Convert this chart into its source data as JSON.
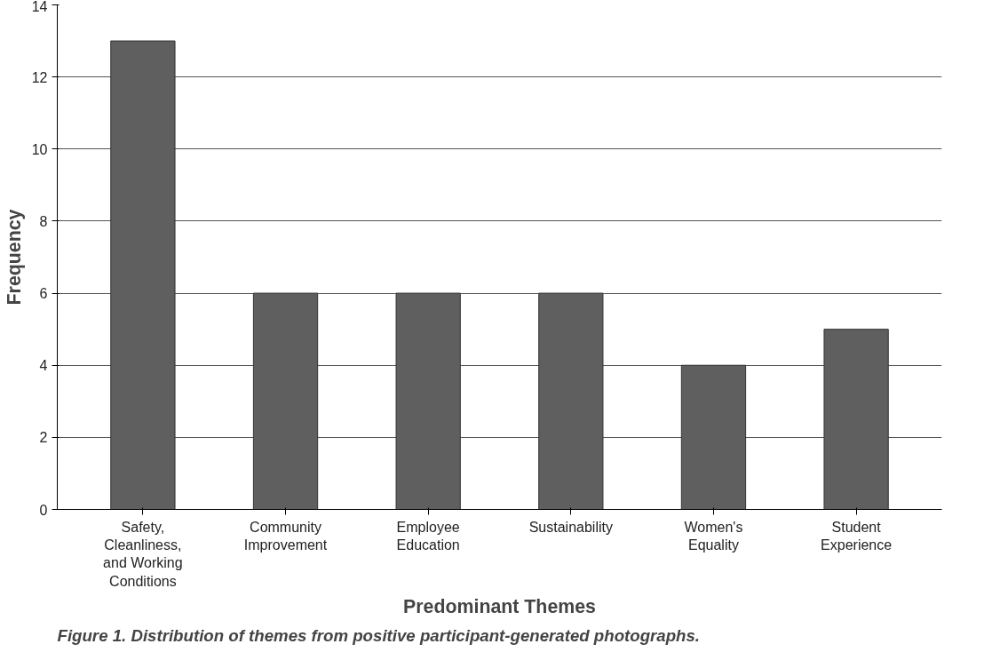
{
  "chart_data": {
    "type": "bar",
    "xlabel": "Predominant Themes",
    "ylabel": "Frequency",
    "categories": [
      "Safety, Cleanliness, and Working Conditions",
      "Community Improvement",
      "Employee Education",
      "Sustainability",
      "Women's Equality",
      "Student Experience"
    ],
    "values": [
      13,
      6,
      6,
      6,
      4,
      5
    ],
    "color": "#5f5f5f",
    "ylim": [
      0,
      14
    ],
    "yticks": [
      0,
      2,
      4,
      6,
      8,
      10,
      12,
      14
    ],
    "grid": "y",
    "annotations": [
      "Figure 1. Distribution of themes from positive participant-generated photographs."
    ]
  }
}
